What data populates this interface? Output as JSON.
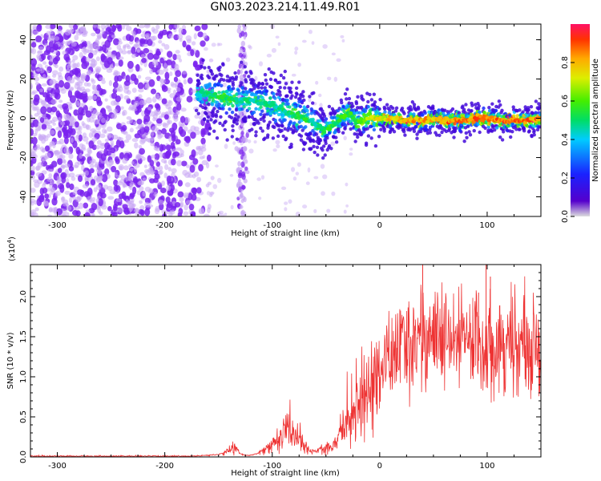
{
  "title": "GN03.2023.214.11.49.R01",
  "colors": {
    "signal": "#ee3333",
    "scatter": "#7a22ee",
    "scatter_light": "#c8a8f4",
    "colormap": [
      "#dddddd",
      "#5500cc",
      "#1a22ff",
      "#00ccff",
      "#00dd66",
      "#44ee00",
      "#ddee00",
      "#ffaa00",
      "#ff3300",
      "#ff1166"
    ]
  },
  "chart_data": [
    {
      "type": "heatmap",
      "xlabel": "Height of straight line (km)",
      "ylabel": "Frequency (Hz)",
      "xlim": [
        -325,
        150
      ],
      "ylim": [
        -50,
        48
      ],
      "x_ticks": [
        "-300",
        "-200",
        "-100",
        "0",
        "100"
      ],
      "y_ticks": [
        "40",
        "20",
        "0",
        "-20",
        "-40"
      ],
      "colorbar": {
        "label": "Normalized spectral amplitude",
        "range": [
          0,
          1
        ],
        "ticks": [
          "0.0",
          "0.2",
          "0.4",
          "0.6",
          "0.8"
        ]
      },
      "ridge": {
        "x": [
          -170,
          -160,
          -150,
          -140,
          -130,
          -120,
          -110,
          -100,
          -90,
          -80,
          -70,
          -60,
          -55,
          -50,
          -45,
          -40,
          -35,
          -30,
          -25,
          -20,
          -15,
          -10,
          -5,
          0,
          10,
          20,
          30,
          40,
          50,
          60,
          70,
          80,
          90,
          100,
          110,
          120,
          130,
          140,
          150
        ],
        "y": [
          12,
          12,
          11,
          10,
          9,
          9,
          8,
          7,
          4,
          2,
          0,
          -3,
          -5,
          -6,
          -4,
          -2,
          1,
          3,
          0,
          -2,
          -1,
          1,
          0,
          0,
          0,
          -1,
          -1,
          -1,
          0,
          -1,
          -1,
          -1,
          0,
          0,
          -1,
          -1,
          -1,
          -1,
          -1
        ],
        "amplitude": [
          0.45,
          0.5,
          0.55,
          0.55,
          0.5,
          0.5,
          0.5,
          0.5,
          0.5,
          0.55,
          0.55,
          0.5,
          0.5,
          0.55,
          0.6,
          0.55,
          0.6,
          0.6,
          0.55,
          0.6,
          0.7,
          0.7,
          0.75,
          0.75,
          0.8,
          0.85,
          0.85,
          0.85,
          0.85,
          0.9,
          0.9,
          0.9,
          0.9,
          0.9,
          0.9,
          0.92,
          0.92,
          0.9,
          0.9
        ]
      },
      "noise_region_x": [
        -325,
        -165
      ],
      "noise_stripe_x": -128
    },
    {
      "type": "line",
      "series": [
        {
          "x": [
            -325,
            -300,
            -275,
            -250,
            -225,
            -200,
            -175,
            -160,
            -150,
            -140,
            -135,
            -130,
            -125,
            -120,
            -115,
            -110,
            -105,
            -100,
            -95,
            -90,
            -85,
            -80,
            -75,
            -70,
            -65,
            -60,
            -55,
            -50,
            -45,
            -40,
            -35,
            -30,
            -25,
            -20,
            -15,
            -10,
            -5,
            0,
            5,
            10,
            15,
            20,
            25,
            30,
            35,
            40,
            45,
            50,
            55,
            60,
            65,
            70,
            75,
            80,
            85,
            90,
            95,
            100,
            105,
            110,
            115,
            120,
            125,
            130,
            135,
            140,
            145,
            150
          ],
          "y": [
            0.01,
            0.01,
            0.01,
            0.01,
            0.01,
            0.01,
            0.01,
            0.02,
            0.03,
            0.08,
            0.12,
            0.04,
            0.02,
            0.02,
            0.04,
            0.06,
            0.1,
            0.15,
            0.22,
            0.3,
            0.35,
            0.3,
            0.25,
            0.12,
            0.08,
            0.06,
            0.1,
            0.15,
            0.1,
            0.2,
            0.35,
            0.5,
            0.6,
            0.7,
            0.75,
            0.85,
            0.95,
            1.05,
            1.15,
            1.25,
            1.3,
            1.35,
            1.4,
            1.45,
            1.5,
            1.55,
            1.52,
            1.5,
            1.45,
            1.42,
            1.4,
            1.42,
            1.45,
            1.45,
            1.48,
            1.5,
            1.45,
            1.35,
            1.4,
            1.45,
            1.45,
            1.4,
            1.4,
            1.38,
            1.35,
            1.35,
            1.4,
            1.4
          ]
        }
      ],
      "peaks": [
        {
          "x": 40,
          "y": 2.4
        },
        {
          "x": 99,
          "y": 2.4
        },
        {
          "x": 103,
          "y": 2.25
        },
        {
          "x": 92,
          "y": 2.05
        }
      ],
      "xlabel": "Height of straight line (km)",
      "ylabel": "SNR (10 * v/v)",
      "y_multiplier": "(x10",
      "y_multiplier_exp": "4",
      "y_multiplier_close": ")",
      "xlim": [
        -325,
        150
      ],
      "ylim": [
        0,
        2.4
      ],
      "x_ticks": [
        "-300",
        "-200",
        "-100",
        "0",
        "100"
      ],
      "y_ticks": [
        "0.0",
        "0.5",
        "1.0",
        "1.5",
        "2.0"
      ]
    }
  ]
}
